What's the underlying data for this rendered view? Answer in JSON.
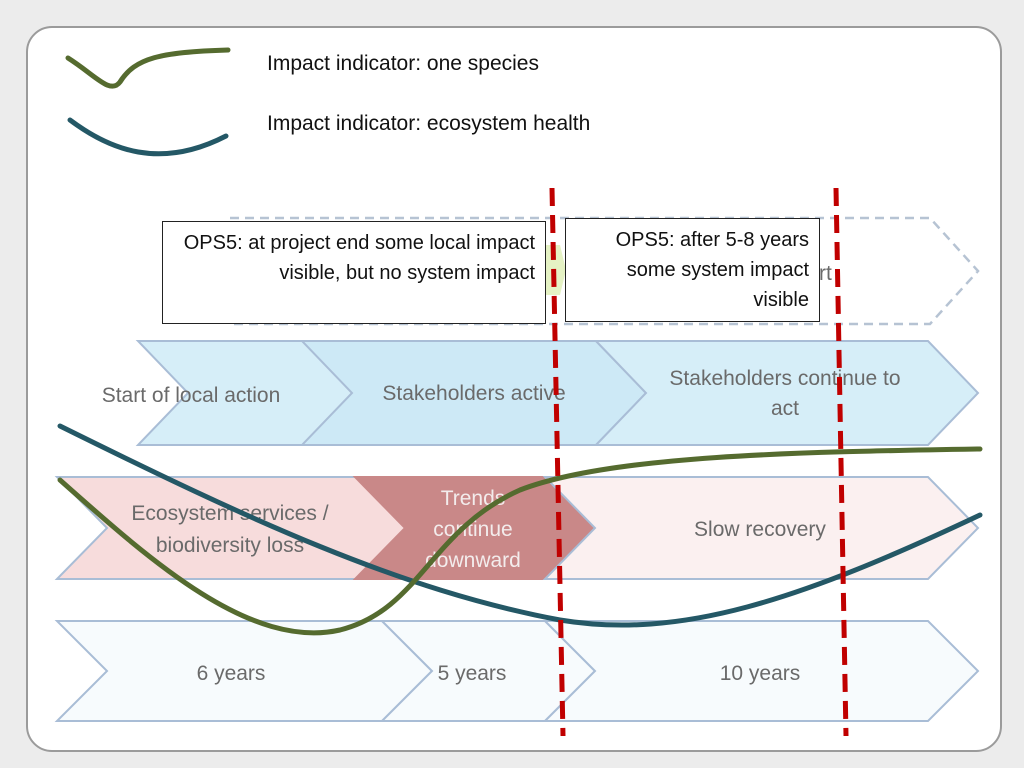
{
  "legend": {
    "species_label": "Impact indicator: one species",
    "ecosystem_label": "Impact indicator: ecosystem health"
  },
  "callouts": {
    "project_end": "OPS5: at project end some local impact visible, but no system impact",
    "after_years": "OPS5: after 5-8 years some system impact visible"
  },
  "rows": {
    "top_partial_text": "rt",
    "action": [
      "Start of local action",
      "Stakeholders active",
      "Stakeholders continue to act"
    ],
    "trend": [
      "Ecosystem services / biodiversity loss",
      "Trends continue downward",
      "Slow recovery"
    ],
    "time": [
      "6 years",
      "5 years",
      "10 years"
    ]
  },
  "colors": {
    "species_curve": "#556b2f",
    "ecosystem_curve": "#245866",
    "marker_line": "#c00000",
    "action_fill": "#d6eef8",
    "trend_loss_fill": "#f7dcdc",
    "trend_downward_fill": "#c98888",
    "trend_recovery_fill": "#fbf0f0",
    "time_fill": "#f7fbfd",
    "chevron_stroke": "#a9bdd6"
  }
}
